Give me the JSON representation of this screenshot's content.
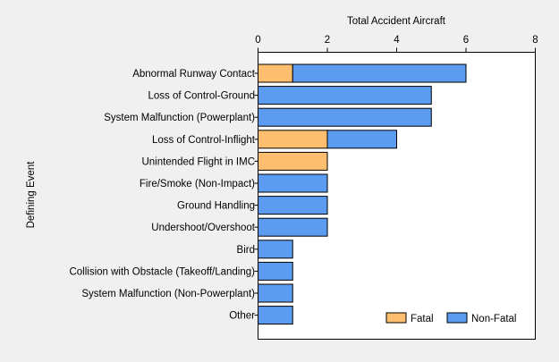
{
  "chart_data": {
    "type": "bar",
    "orientation": "horizontal",
    "stacked": true,
    "xlabel": "Total Accident Aircraft",
    "ylabel": "Defining Event",
    "xlim": [
      0,
      8
    ],
    "xticks": [
      0,
      2,
      4,
      6,
      8
    ],
    "x_axis_position": "top",
    "grid": false,
    "legend_position": "bottom-right",
    "categories": [
      "Abnormal Runway Contact",
      "Loss of Control-Ground",
      "System Malfunction (Powerplant)",
      "Loss of Control-Inflight",
      "Unintended Flight in IMC",
      "Fire/Smoke (Non-Impact)",
      "Ground Handling",
      "Undershoot/Overshoot",
      "Bird",
      "Collision with Obstacle (Takeoff/Landing)",
      "System Malfunction (Non-Powerplant)",
      "Other"
    ],
    "series": [
      {
        "name": "Fatal",
        "color": "#fdbf6f",
        "values": [
          1,
          0,
          0,
          2,
          2,
          0,
          0,
          0,
          0,
          0,
          0,
          0
        ]
      },
      {
        "name": "Non-Fatal",
        "color": "#5b9bf0",
        "values": [
          5,
          5,
          5,
          2,
          0,
          2,
          2,
          2,
          1,
          1,
          1,
          1
        ]
      }
    ]
  }
}
